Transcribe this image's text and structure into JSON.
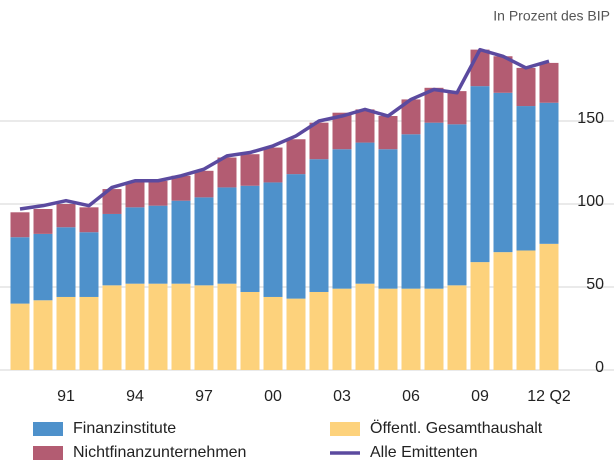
{
  "chart_data": {
    "type": "bar",
    "stacked": true,
    "subtitle": "In Prozent des BIP",
    "categories": [
      null,
      null,
      "91",
      null,
      null,
      "94",
      null,
      null,
      "97",
      null,
      null,
      "00",
      null,
      null,
      "03",
      null,
      null,
      "06",
      null,
      null,
      "09",
      null,
      null,
      "12 Q2"
    ],
    "series": [
      {
        "name": "Öffentl. Gesamthaushalt",
        "type": "bar",
        "color": "#fdd27c",
        "values": [
          40,
          42,
          44,
          44,
          51,
          52,
          52,
          52,
          51,
          52,
          47,
          44,
          43,
          47,
          49,
          52,
          49,
          49,
          49,
          51,
          65,
          71,
          72,
          76
        ]
      },
      {
        "name": "Finanzinstitute",
        "type": "bar",
        "color": "#4e91cb",
        "values": [
          40,
          40,
          42,
          39,
          43,
          46,
          47,
          50,
          53,
          58,
          64,
          69,
          75,
          80,
          84,
          85,
          84,
          93,
          100,
          97,
          106,
          96,
          87,
          85
        ]
      },
      {
        "name": "Nichtfinanzunternehmen",
        "type": "bar",
        "color": "#b35c72",
        "values": [
          15,
          15,
          14,
          15,
          15,
          15,
          15,
          15,
          16,
          18,
          19,
          21,
          21,
          22,
          22,
          20,
          20,
          21,
          21,
          20,
          22,
          22,
          23,
          24
        ]
      },
      {
        "name": "Alle Emittenten",
        "type": "line",
        "color": "#5b4a9f",
        "values": [
          97,
          99,
          102,
          99,
          110,
          114,
          114,
          117,
          121,
          129,
          131,
          135,
          141,
          150,
          153,
          157,
          153,
          163,
          169,
          167,
          193,
          189,
          182,
          186
        ]
      }
    ],
    "ylim": [
      0,
      200
    ],
    "yticks": [
      0,
      50,
      100,
      150
    ],
    "grid": true
  }
}
